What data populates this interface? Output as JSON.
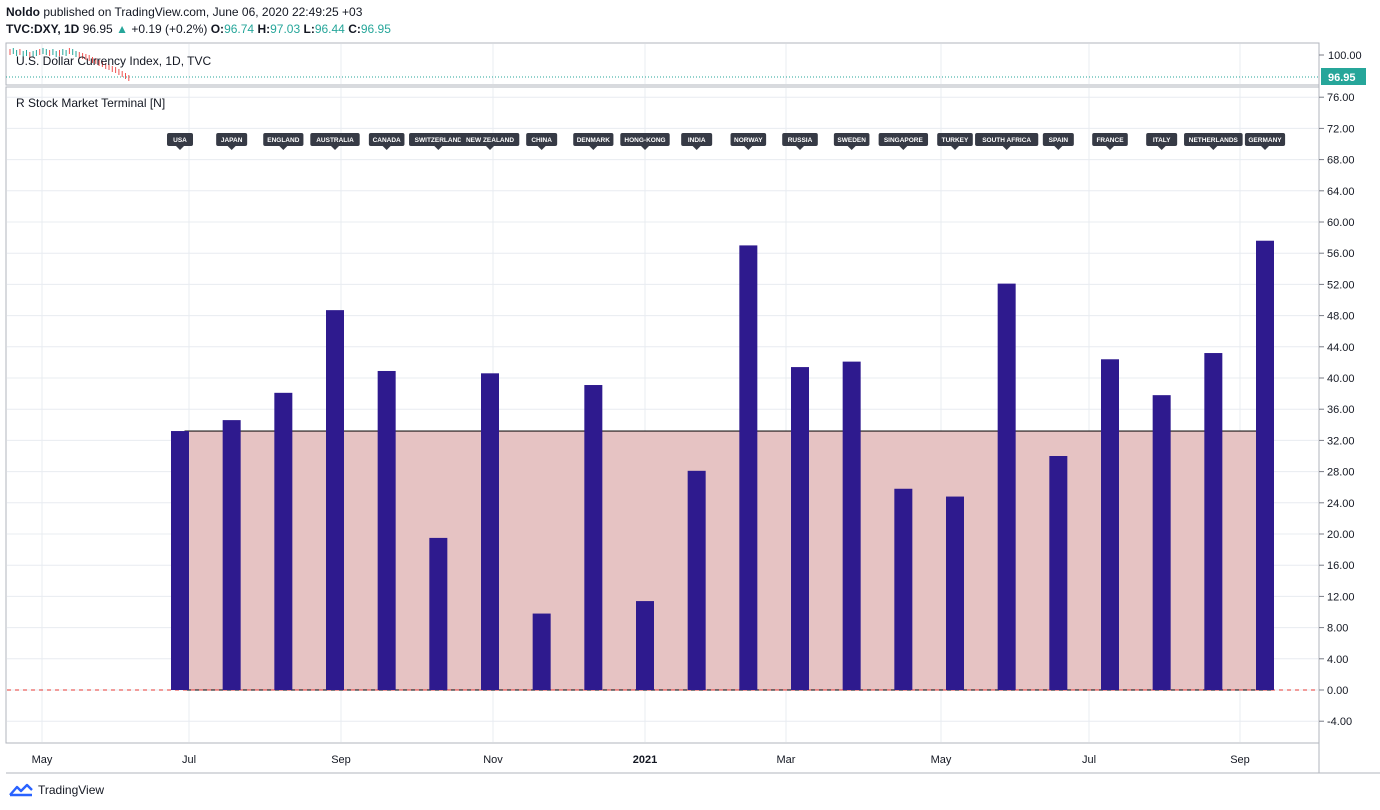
{
  "header": {
    "author": "Noldo",
    "published_text": "published on TradingView.com, June 06, 2020 22:49:25 +03",
    "symbol": "TVC:DXY, 1D",
    "last": "96.95",
    "change_arrow": "▲",
    "change": "+0.19 (+0.2%)",
    "o_label": "O:",
    "o_value": "96.74",
    "h_label": "H:",
    "h_value": "97.03",
    "l_label": "L:",
    "l_value": "96.44",
    "c_label": "C:",
    "c_value": "96.95"
  },
  "top_pane": {
    "title": "U.S. Dollar Currency Index, 1D, TVC",
    "y_ticks": [
      "100.00"
    ],
    "price_badge": "96.95"
  },
  "indicator": {
    "title": "R Stock Market Terminal [N]"
  },
  "x_axis": {
    "labels": [
      "May",
      "Jul",
      "Sep",
      "Nov",
      "2021",
      "Mar",
      "May",
      "Jul",
      "Sep"
    ]
  },
  "branding": {
    "text": "TradingView"
  },
  "colors": {
    "bar": "#2e1a8e",
    "band_fill": "#e6c3c3",
    "zero_line": "#e53935",
    "price_badge": "#26a69a",
    "label_bg": "#363a45",
    "grid": "#e8ecf1"
  },
  "chart_data": {
    "type": "bar",
    "title": "R Stock Market Terminal [N]",
    "categories": [
      "USA",
      "JAPAN",
      "ENGLAND",
      "AUSTRALIA",
      "CANADA",
      "SWITZERLAND",
      "NEW ZEALAND",
      "CHINA",
      "DENMARK",
      "HONG-KONG",
      "INDIA",
      "NORWAY",
      "RUSSIA",
      "SWEDEN",
      "SINGAPORE",
      "TURKEY",
      "SOUTH AFRICA",
      "SPAIN",
      "FRANCE",
      "ITALY",
      "NETHERLANDS",
      "GERMANY"
    ],
    "values": [
      33.2,
      34.6,
      38.1,
      48.7,
      40.9,
      19.5,
      40.6,
      9.8,
      39.1,
      11.4,
      28.1,
      57.0,
      41.4,
      42.1,
      25.8,
      24.8,
      52.1,
      30.0,
      42.4,
      37.8,
      43.2,
      57.6
    ],
    "band": {
      "from": 0,
      "to": 33.2
    },
    "y_ticks": [
      "76.00",
      "72.00",
      "68.00",
      "64.00",
      "60.00",
      "56.00",
      "52.00",
      "48.00",
      "44.00",
      "40.00",
      "36.00",
      "32.00",
      "28.00",
      "24.00",
      "20.00",
      "16.00",
      "12.00",
      "8.00",
      "4.00",
      "0.00",
      "-4.00"
    ],
    "ylim": [
      -6.5,
      78.2
    ],
    "xlabel": "",
    "ylabel": ""
  }
}
